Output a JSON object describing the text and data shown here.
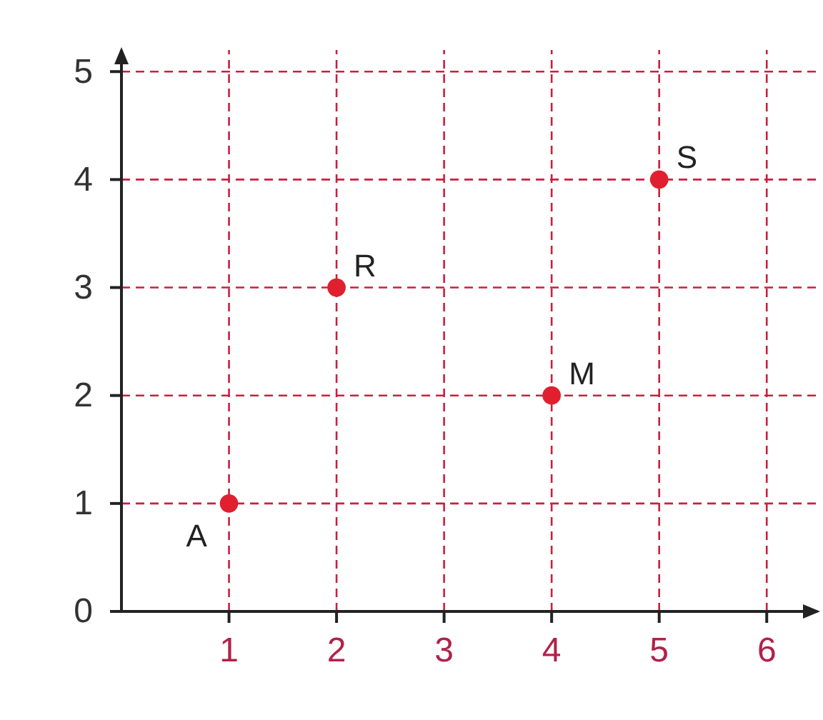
{
  "chart_data": {
    "type": "scatter",
    "x": [
      1,
      2,
      4,
      5
    ],
    "values": [
      1,
      3,
      2,
      4
    ],
    "color": "#e0202e",
    "marker": "circle",
    "grid": true,
    "xlim": [
      0,
      6.47
    ],
    "ylim": [
      0,
      5.2
    ],
    "xticks": [
      1,
      2,
      3,
      4,
      5,
      6
    ],
    "yticks": [
      0,
      1,
      2,
      3,
      4,
      5
    ],
    "annotations": [
      {
        "text": "A",
        "x": 1,
        "y": 1
      },
      {
        "text": "R",
        "x": 2,
        "y": 3
      },
      {
        "text": "M",
        "x": 4,
        "y": 2
      },
      {
        "text": "S",
        "x": 5,
        "y": 4
      }
    ]
  }
}
